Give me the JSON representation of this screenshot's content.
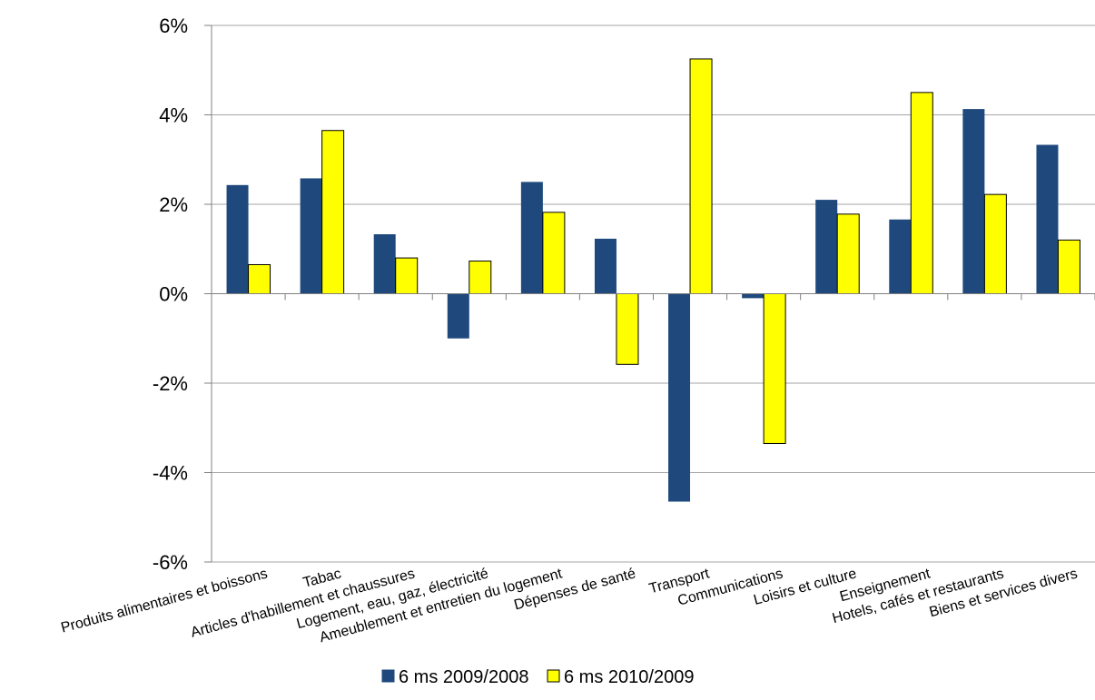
{
  "chart_data": {
    "type": "bar",
    "title": "",
    "xlabel": "",
    "ylabel": "",
    "ylim": [
      -6,
      6
    ],
    "yticks": [
      6,
      4,
      2,
      0,
      -2,
      -4,
      -6
    ],
    "ytick_labels": [
      "6%",
      "4%",
      "2%",
      "0%",
      "-2%",
      "-4%",
      "-6%"
    ],
    "grid": "horizontal",
    "legend_position": "bottom",
    "categories": [
      "Produits alimentaires et boissons",
      "Tabac",
      "Articles d'habillement et chaussures",
      "Logement, eau, gaz, électricité",
      "Ameublement et entretien du logement",
      "Dépenses de santé",
      "Transport",
      "Communications",
      "Loisirs et culture",
      "Enseignement",
      "Hotels, cafés et restaurants",
      "Biens et services divers"
    ],
    "series": [
      {
        "name": "6 ms 2009/2008",
        "color": "#1f497d",
        "values": [
          2.43,
          2.58,
          1.33,
          -1.0,
          2.5,
          1.23,
          -4.65,
          -0.1,
          2.1,
          1.66,
          4.13,
          3.33
        ]
      },
      {
        "name": "6 ms 2010/2009",
        "color": "#ffff00",
        "values": [
          0.65,
          3.65,
          0.8,
          0.73,
          1.82,
          -1.58,
          5.25,
          -3.35,
          1.78,
          4.5,
          2.22,
          1.2
        ]
      }
    ]
  }
}
